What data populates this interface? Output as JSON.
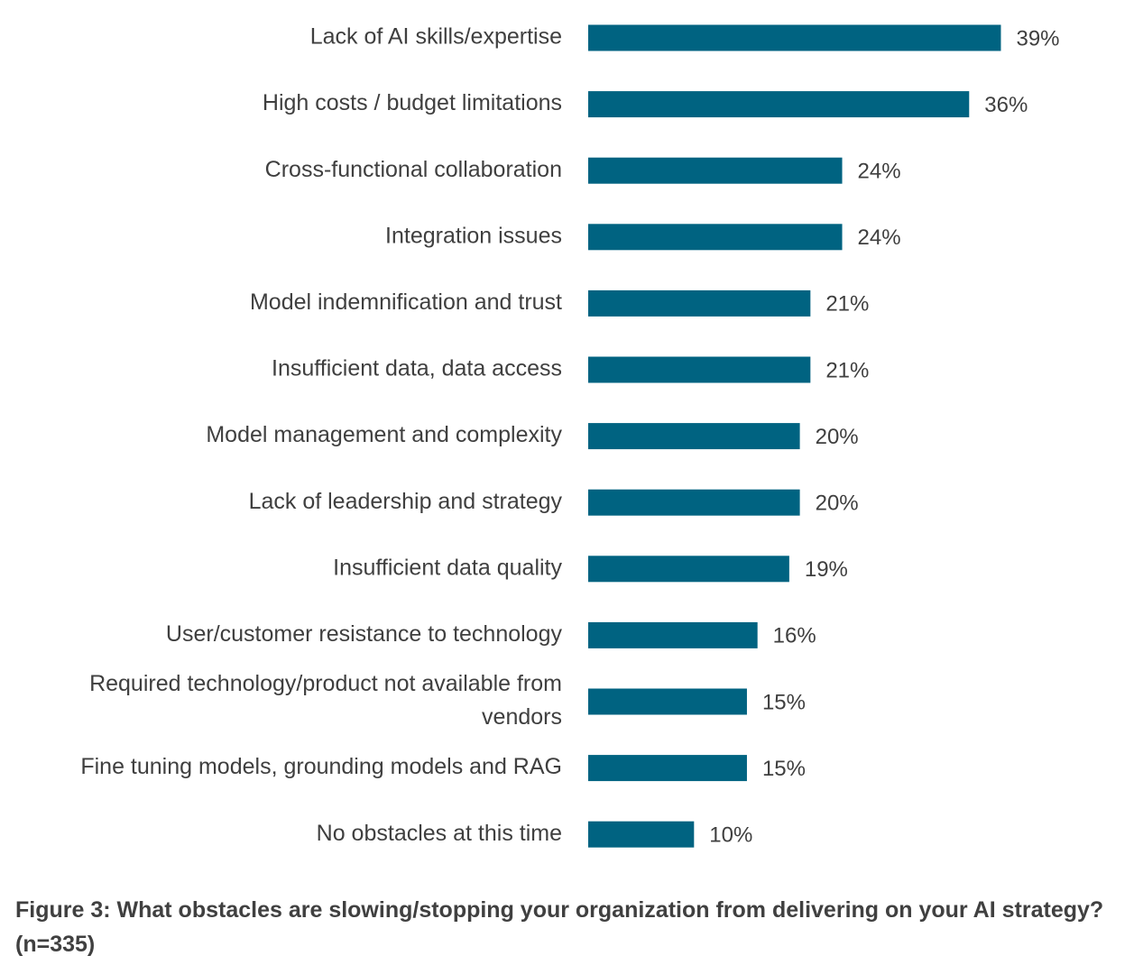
{
  "chart_data": {
    "type": "bar",
    "orientation": "horizontal",
    "categories": [
      "Lack of AI skills/expertise",
      "High costs / budget limitations",
      "Cross-functional collaboration",
      "Integration issues",
      "Model indemnification and trust",
      "Insufficient data, data access",
      "Model management and complexity",
      "Lack of leadership and strategy",
      "Insufficient data quality",
      "User/customer resistance to technology",
      "Required technology/product not available from vendors",
      "Fine tuning models, grounding models and RAG",
      "No obstacles at this time"
    ],
    "values": [
      39,
      36,
      24,
      24,
      21,
      21,
      20,
      20,
      19,
      16,
      15,
      15,
      10
    ],
    "value_labels": [
      "39%",
      "36%",
      "24%",
      "24%",
      "21%",
      "21%",
      "20%",
      "20%",
      "19%",
      "16%",
      "15%",
      "15%",
      "10%"
    ],
    "bar_color": "#006381",
    "text_color": "#3f3f3f",
    "xlim": [
      0,
      40
    ],
    "grid": false,
    "legend": "none",
    "title": "",
    "xlabel": "",
    "ylabel": ""
  },
  "caption": "Figure 3: What obstacles are slowing/stopping your organization from delivering on your AI strategy? (n=335)"
}
